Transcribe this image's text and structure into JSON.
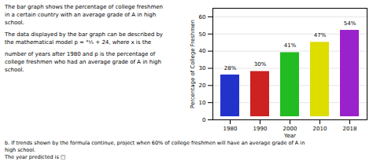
{
  "chart_data": {
    "type": "bar",
    "categories": [
      "1980",
      "1990",
      "2000",
      "2010",
      "2018"
    ],
    "values": [
      28,
      30,
      41,
      47,
      54
    ],
    "value_labels": [
      "28%",
      "30%",
      "41%",
      "47%",
      "54%"
    ],
    "colors": [
      "#2233cc",
      "#cc2222",
      "#22bb22",
      "#dddd00",
      "#9922cc"
    ],
    "data_labels": true,
    "xlabel": "Year",
    "ylabel": "Percentage of College Freshmen",
    "ylim": [
      0,
      65
    ],
    "yticks": [
      0,
      10,
      20,
      30,
      40,
      50,
      60
    ],
    "grid": true,
    "annotations": [
      "The bar graph shows the percentage of college freshmen",
      "in a certain country with an average grade of A in high",
      "school.",
      "The data displayed by the bar graph can be described by",
      "the mathematical model p = ⁴ˣ⁄₅ + 24, where x is the",
      "number of years after 1980 and p is the percentage of",
      "college freshmen who had an average grade of A in high",
      "school.",
      "b. If trends shown by the formula continue, project when 60% of college freshmen will have an average grade of A in",
      "high school.",
      "The year predicted is □"
    ]
  }
}
